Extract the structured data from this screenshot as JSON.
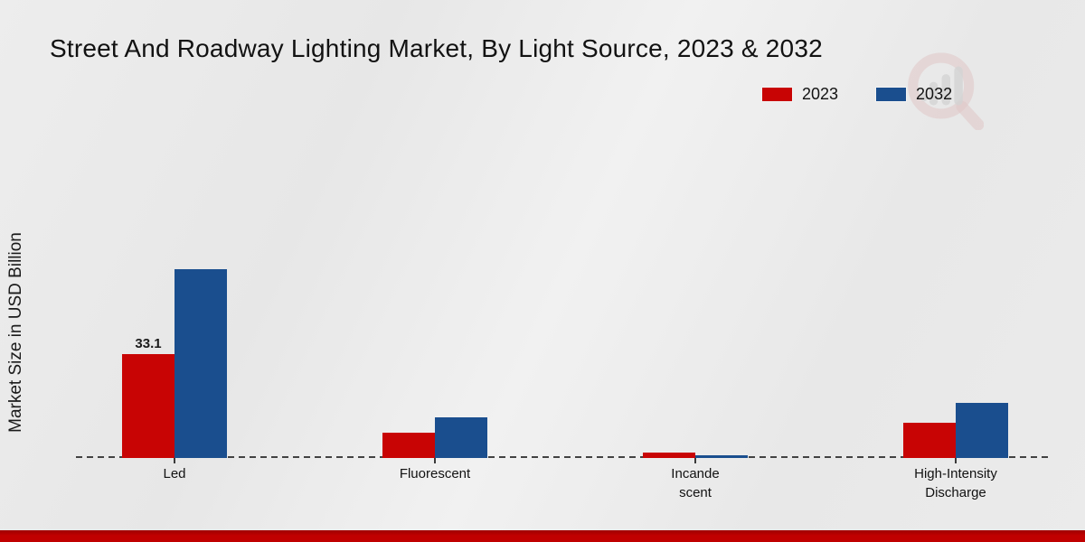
{
  "title": "Street And Roadway Lighting Market, By Light Source, 2023 & 2032",
  "ylabel": "Market Size in USD Billion",
  "colors": {
    "series_2023": "#c80404",
    "series_2032": "#1a4e8e",
    "footer_band": "#c00000",
    "baseline": "#424242",
    "background": "#e9e9e9"
  },
  "watermark_icon": "magnifier-bar-chart-logo",
  "chart_data": {
    "type": "bar",
    "categories": [
      "Led",
      "Fluorescent",
      "Incande\nscent",
      "High-Intensity\nDischarge"
    ],
    "series": [
      {
        "name": "2023",
        "color": "#c80404",
        "values": [
          33.1,
          8.1,
          1.7,
          11.2
        ]
      },
      {
        "name": "2032",
        "color": "#1a4e8e",
        "values": [
          60.2,
          13.0,
          0.9,
          17.6
        ]
      }
    ],
    "bar_labels": [
      [
        "33.1",
        "",
        "",
        ""
      ],
      [
        "",
        "",
        "",
        ""
      ]
    ],
    "title": "Street And Roadway Lighting Market, By Light Source, 2023 & 2032",
    "xlabel": "",
    "ylabel": "Market Size in USD Billion",
    "ylim": [
      0,
      65
    ],
    "grid": false,
    "legend_position": "top-right",
    "x_axis_style": "dashed-baseline",
    "y_axis_ticks_visible": false
  }
}
